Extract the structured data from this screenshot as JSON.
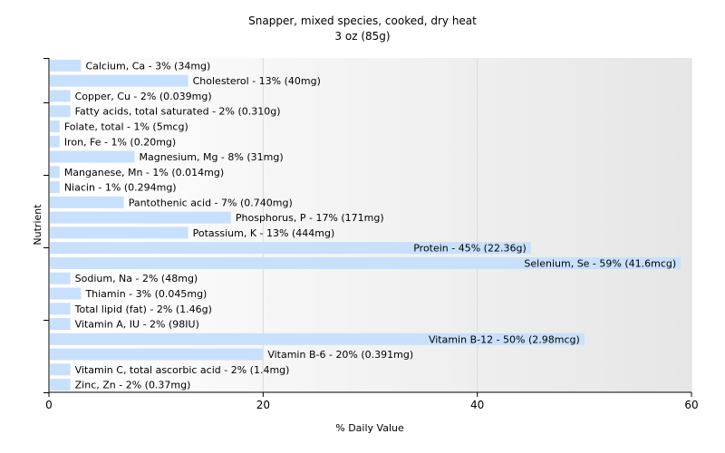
{
  "chart_data": {
    "type": "bar",
    "orientation": "horizontal",
    "title": "Snapper, mixed species, cooked, dry heat",
    "subtitle": "3 oz (85g)",
    "xlabel": "% Daily Value",
    "ylabel": "Nutrient",
    "xlim": [
      0,
      60
    ],
    "xticks": [
      "0",
      "20",
      "40",
      "60"
    ],
    "grid": "vertical",
    "bar_color": "#c8e0fc",
    "background_gradient": [
      "#ffffff",
      "#e6e6e6"
    ],
    "categories": [
      "Calcium, Ca",
      "Cholesterol",
      "Copper, Cu",
      "Fatty acids, total saturated",
      "Folate, total",
      "Iron, Fe",
      "Magnesium, Mg",
      "Manganese, Mn",
      "Niacin",
      "Pantothenic acid",
      "Phosphorus, P",
      "Potassium, K",
      "Protein",
      "Selenium, Se",
      "Sodium, Na",
      "Thiamin",
      "Total lipid (fat)",
      "Vitamin A, IU",
      "Vitamin B-12",
      "Vitamin B-6",
      "Vitamin C, total ascorbic acid",
      "Zinc, Zn"
    ],
    "values": [
      3,
      13,
      2,
      2,
      1,
      1,
      8,
      1,
      1,
      7,
      17,
      13,
      45,
      59,
      2,
      3,
      2,
      2,
      50,
      20,
      2,
      2
    ],
    "labels": [
      "Calcium, Ca - 3% (34mg)",
      "Cholesterol - 13% (40mg)",
      "Copper, Cu - 2% (0.039mg)",
      "Fatty acids, total saturated - 2% (0.310g)",
      "Folate, total - 1% (5mcg)",
      "Iron, Fe - 1% (0.20mg)",
      "Magnesium, Mg - 8% (31mg)",
      "Manganese, Mn - 1% (0.014mg)",
      "Niacin - 1% (0.294mg)",
      "Pantothenic acid - 7% (0.740mg)",
      "Phosphorus, P - 17% (171mg)",
      "Potassium, K - 13% (444mg)",
      "Protein - 45% (22.36g)",
      "Selenium, Se - 59% (41.6mcg)",
      "Sodium, Na - 2% (48mg)",
      "Thiamin - 3% (0.045mg)",
      "Total lipid (fat) - 2% (1.46g)",
      "Vitamin A, IU - 2% (98IU)",
      "Vitamin B-12 - 50% (2.98mcg)",
      "Vitamin B-6 - 20% (0.391mg)",
      "Vitamin C, total ascorbic acid - 2% (1.4mg)",
      "Zinc, Zn - 2% (0.37mg)"
    ]
  }
}
